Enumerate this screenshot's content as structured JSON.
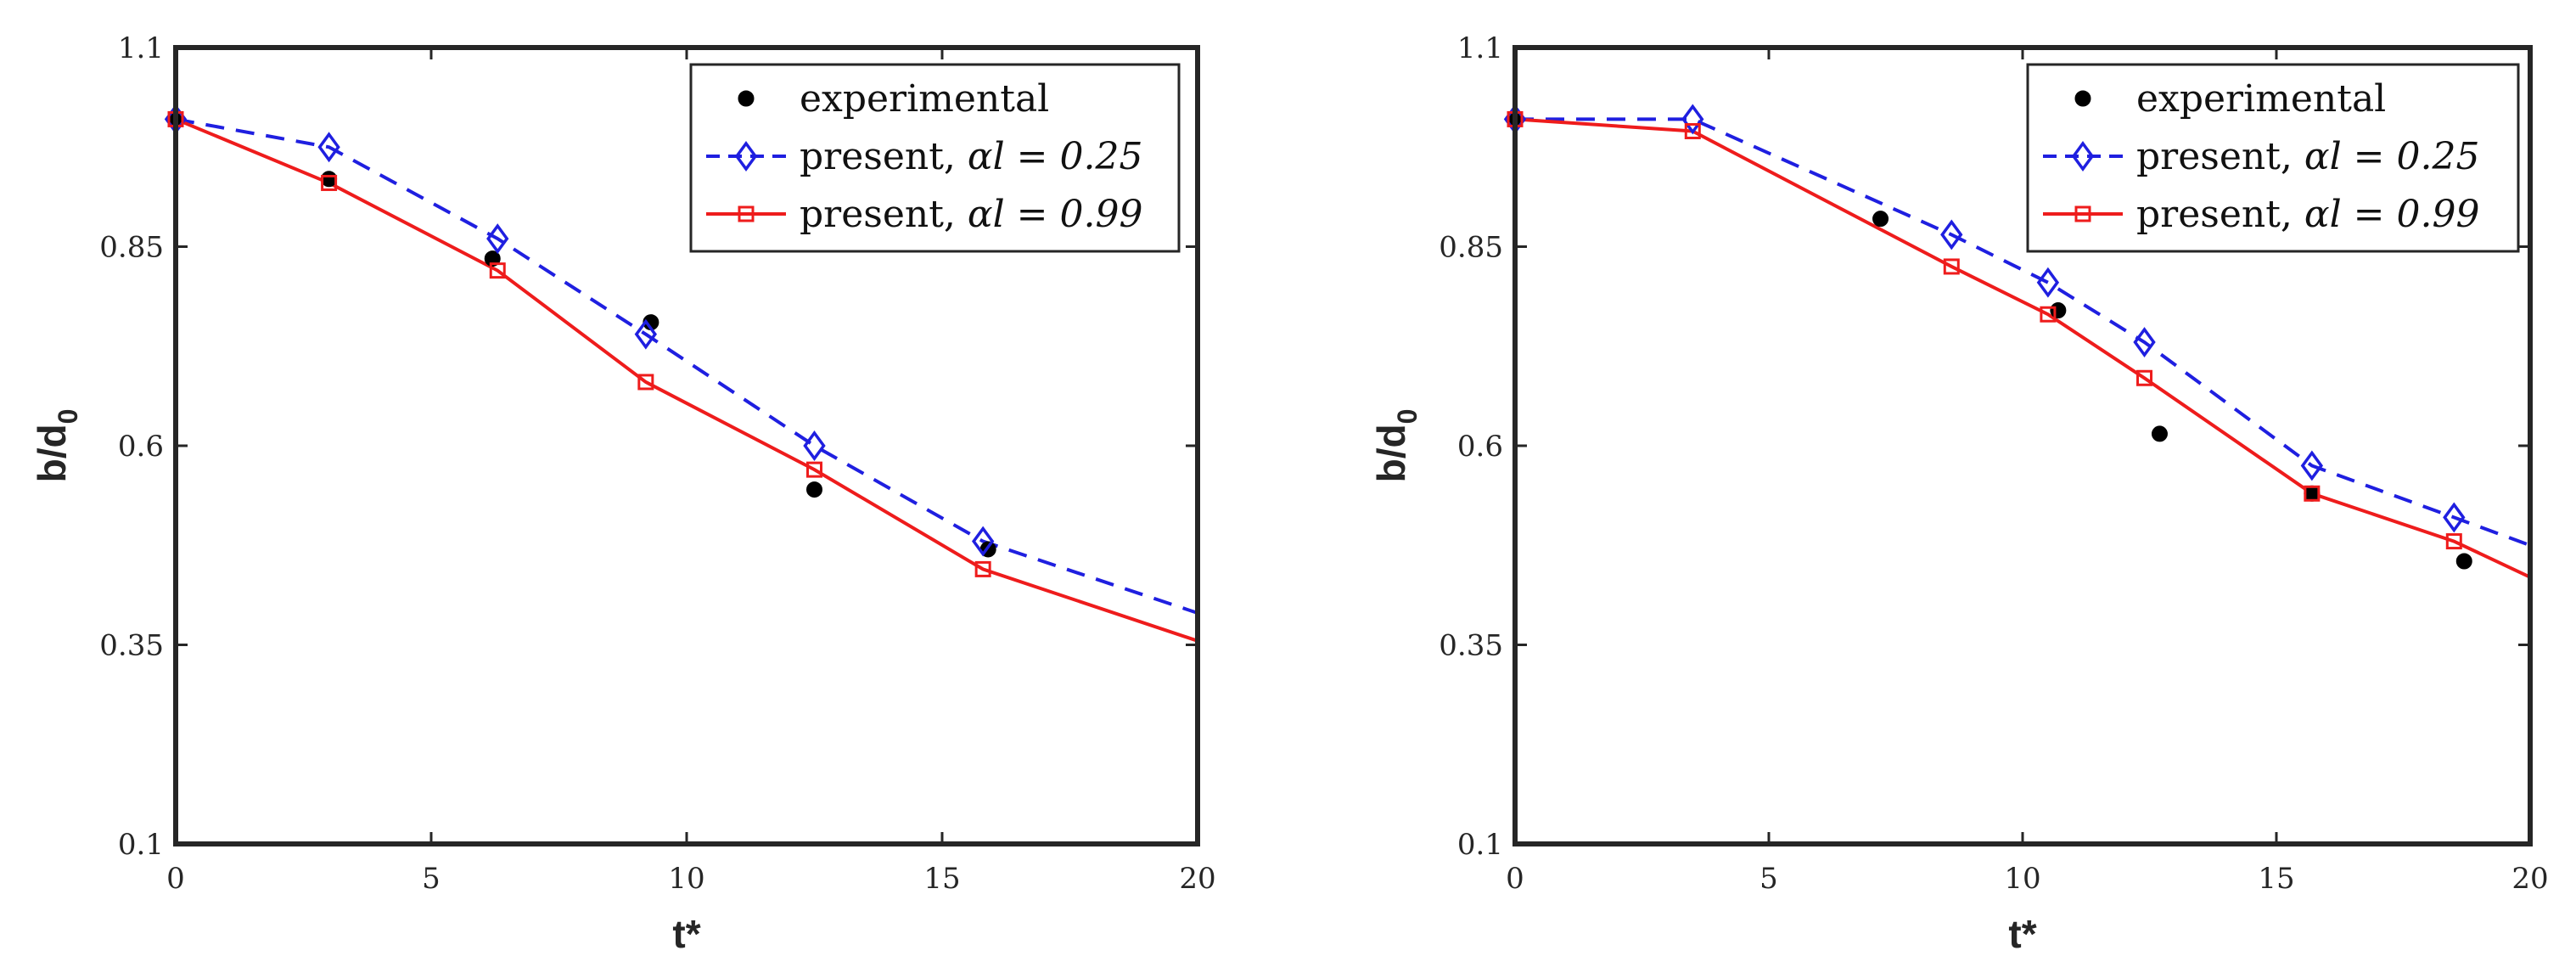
{
  "chart_data": [
    {
      "type": "line",
      "xlabel": "t*",
      "ylabel_main": "b/d",
      "ylabel_sub": "0",
      "xlim": [
        0,
        20
      ],
      "ylim": [
        0.1,
        1.1
      ],
      "xticks": [
        0,
        5,
        10,
        15,
        20
      ],
      "xtick_labels": [
        "0",
        "5",
        "10",
        "15",
        "20"
      ],
      "yticks": [
        0.1,
        0.35,
        0.6,
        0.85,
        1.1
      ],
      "ytick_labels": [
        "0.1",
        "0.35",
        "0.6",
        "0.85",
        "1.1"
      ],
      "legend_location": "top-right",
      "series": [
        {
          "key": "experimental",
          "legend_prefix": "experimental",
          "legend_math": "",
          "color": "#000000",
          "style": "markers",
          "marker": "filled-circle",
          "x": [
            0,
            3.0,
            6.2,
            9.3,
            12.5,
            15.9
          ],
          "y": [
            1.01,
            0.935,
            0.835,
            0.755,
            0.545,
            0.47
          ]
        },
        {
          "key": "alpha_025",
          "legend_prefix": "present, ",
          "legend_math": "αl = 0.25",
          "color": "#1f1fe0",
          "style": "dashed",
          "marker": "diamond",
          "x": [
            0,
            3.0,
            6.3,
            9.2,
            12.5,
            15.8,
            20
          ],
          "y": [
            1.01,
            0.975,
            0.86,
            0.74,
            0.6,
            0.48,
            0.39
          ]
        },
        {
          "key": "alpha_099",
          "legend_prefix": "present, ",
          "legend_math": "αl = 0.99",
          "color": "#ee1c1c",
          "style": "solid",
          "marker": "square",
          "x": [
            0,
            3.0,
            6.3,
            9.2,
            12.5,
            15.8,
            20
          ],
          "y": [
            1.01,
            0.93,
            0.82,
            0.68,
            0.57,
            0.445,
            0.355
          ]
        }
      ]
    },
    {
      "type": "line",
      "xlabel": "t*",
      "ylabel_main": "b/d",
      "ylabel_sub": "0",
      "xlim": [
        0,
        20
      ],
      "ylim": [
        0.1,
        1.1
      ],
      "xticks": [
        0,
        5,
        10,
        15,
        20
      ],
      "xtick_labels": [
        "0",
        "5",
        "10",
        "15",
        "20"
      ],
      "yticks": [
        0.1,
        0.35,
        0.6,
        0.85,
        1.1
      ],
      "ytick_labels": [
        "0.1",
        "0.35",
        "0.6",
        "0.85",
        "1.1"
      ],
      "legend_location": "top-right",
      "series": [
        {
          "key": "experimental",
          "legend_prefix": "experimental",
          "legend_math": "",
          "color": "#000000",
          "style": "markers",
          "marker": "filled-circle",
          "x": [
            0,
            7.2,
            10.7,
            12.7,
            15.7,
            18.7
          ],
          "y": [
            1.01,
            0.885,
            0.77,
            0.615,
            0.54,
            0.455
          ]
        },
        {
          "key": "alpha_025",
          "legend_prefix": "present, ",
          "legend_math": "αl = 0.25",
          "color": "#1f1fe0",
          "style": "dashed",
          "marker": "diamond",
          "x": [
            0,
            3.5,
            8.6,
            10.5,
            12.4,
            15.7,
            18.5,
            20
          ],
          "y": [
            1.01,
            1.01,
            0.865,
            0.805,
            0.73,
            0.575,
            0.51,
            0.475
          ]
        },
        {
          "key": "alpha_099",
          "legend_prefix": "present, ",
          "legend_math": "αl = 0.99",
          "color": "#ee1c1c",
          "style": "solid",
          "marker": "square",
          "x": [
            0,
            3.5,
            8.6,
            10.5,
            12.4,
            15.7,
            18.5,
            20
          ],
          "y": [
            1.01,
            0.995,
            0.825,
            0.765,
            0.685,
            0.54,
            0.48,
            0.435
          ]
        }
      ]
    }
  ]
}
